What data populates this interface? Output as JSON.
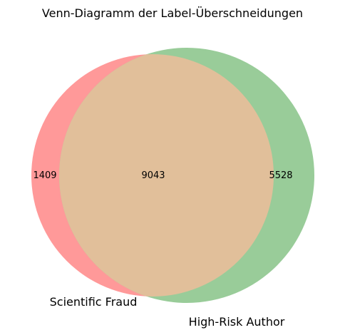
{
  "chart_data": {
    "type": "venn",
    "title": "Venn-Diagramm der Label-Überschneidungen",
    "sets": [
      {
        "name": "Scientific Fraud",
        "only_count": "1409",
        "color": "#ff9999"
      },
      {
        "name": "High-Risk Author",
        "only_count": "5528",
        "color": "#99cc99"
      }
    ],
    "intersection": {
      "count": "9043",
      "color": "#e1bf9a"
    }
  }
}
